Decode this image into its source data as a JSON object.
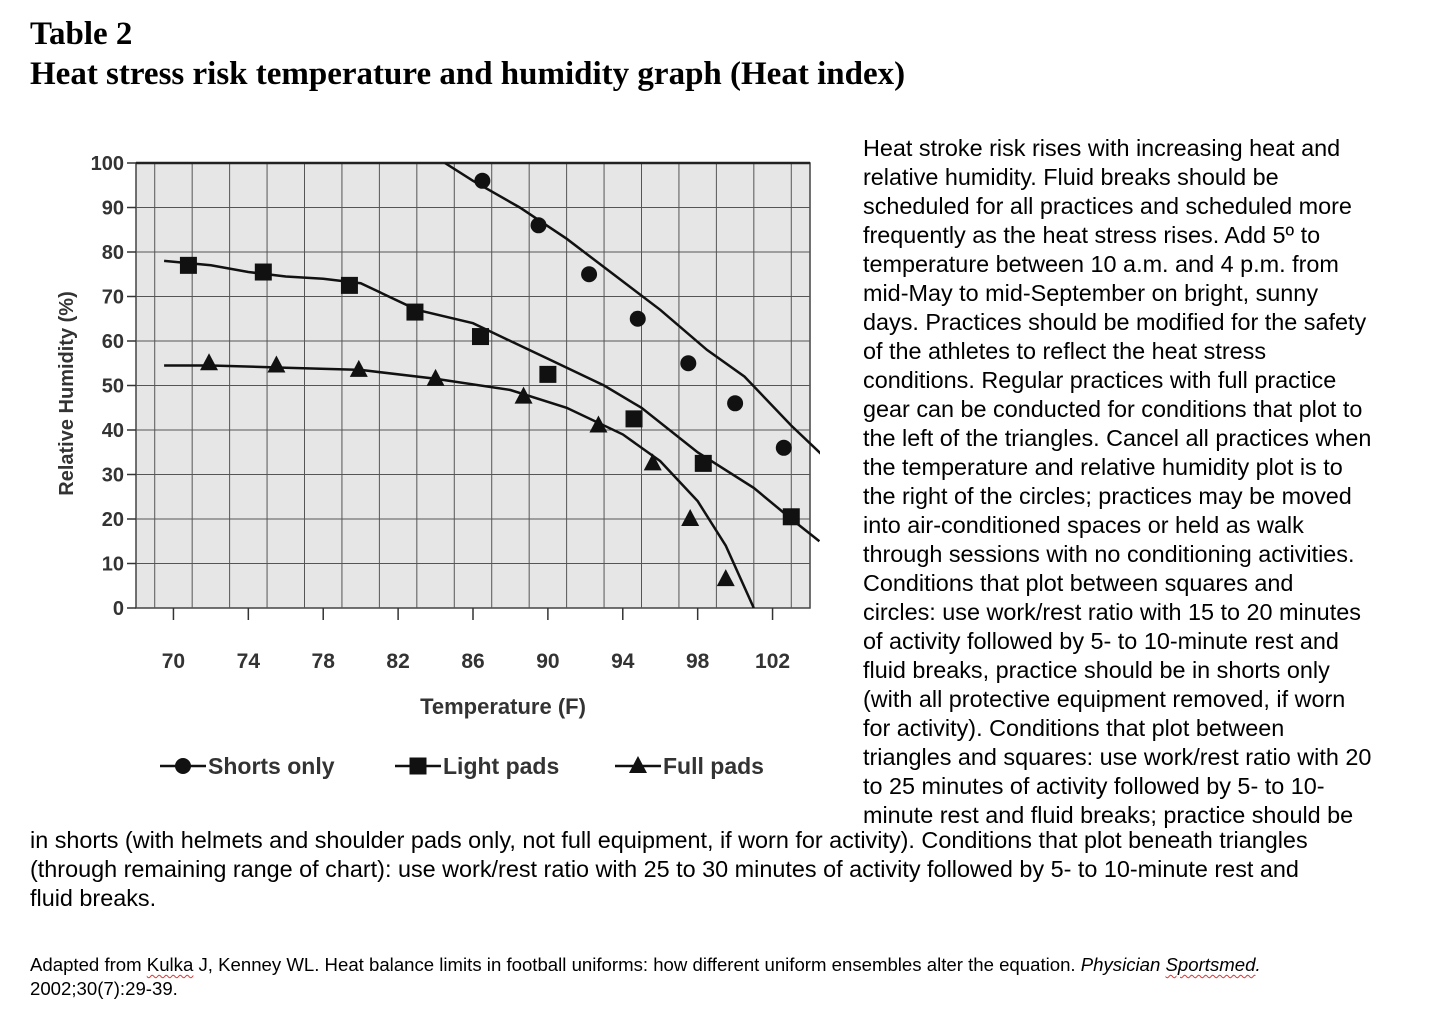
{
  "title": {
    "line1": "Table 2",
    "line2": "Heat stress risk temperature and humidity graph (Heat index)"
  },
  "chart_data": {
    "type": "line",
    "title": "",
    "xlabel": "Temperature (F)",
    "ylabel": "Relative Humidity (%)",
    "xlim": [
      68,
      104
    ],
    "ylim": [
      0,
      100
    ],
    "x_ticks": [
      70,
      74,
      78,
      82,
      86,
      90,
      94,
      98,
      102
    ],
    "y_ticks": [
      0,
      10,
      20,
      30,
      40,
      50,
      60,
      70,
      80,
      90,
      100
    ],
    "grid": true,
    "legend_position": "bottom",
    "series": [
      {
        "name": "Shorts only",
        "marker": "circle",
        "curve": [
          [
            84.5,
            100
          ],
          [
            86,
            96
          ],
          [
            88.5,
            90
          ],
          [
            91,
            83
          ],
          [
            93.5,
            75
          ],
          [
            96,
            67
          ],
          [
            98.5,
            58
          ],
          [
            100.5,
            52
          ],
          [
            103,
            41
          ],
          [
            105,
            33
          ]
        ],
        "points": [
          [
            86.5,
            96
          ],
          [
            89.5,
            86
          ],
          [
            92.2,
            75
          ],
          [
            94.8,
            65
          ],
          [
            97.5,
            55
          ],
          [
            100,
            46
          ],
          [
            102.6,
            36
          ]
        ]
      },
      {
        "name": "Light pads",
        "marker": "square",
        "curve": [
          [
            69.5,
            78
          ],
          [
            72,
            77
          ],
          [
            74,
            75.5
          ],
          [
            76,
            74.5
          ],
          [
            78,
            74
          ],
          [
            80,
            73
          ],
          [
            83,
            67
          ],
          [
            86,
            64
          ],
          [
            88,
            60
          ],
          [
            90,
            56
          ],
          [
            93,
            50
          ],
          [
            95,
            45
          ],
          [
            98,
            35
          ],
          [
            101,
            27
          ],
          [
            103,
            20
          ],
          [
            104.5,
            15
          ]
        ],
        "points": [
          [
            70.8,
            77
          ],
          [
            74.8,
            75.5
          ],
          [
            79.4,
            72.5
          ],
          [
            82.9,
            66.5
          ],
          [
            86.4,
            61
          ],
          [
            90,
            52.5
          ],
          [
            94.6,
            42.5
          ],
          [
            98.3,
            32.5
          ],
          [
            103,
            20.5
          ]
        ]
      },
      {
        "name": "Full pads",
        "marker": "triangle",
        "curve": [
          [
            69.5,
            54.5
          ],
          [
            72,
            54.5
          ],
          [
            76,
            54
          ],
          [
            80,
            53.5
          ],
          [
            84,
            51.5
          ],
          [
            88,
            49
          ],
          [
            91,
            45
          ],
          [
            94,
            39
          ],
          [
            96,
            33
          ],
          [
            98,
            24
          ],
          [
            99.5,
            14
          ],
          [
            101,
            0
          ]
        ],
        "points": [
          [
            71.9,
            55
          ],
          [
            75.5,
            54.5
          ],
          [
            79.9,
            53.5
          ],
          [
            84,
            51.5
          ],
          [
            88.7,
            47.5
          ],
          [
            92.7,
            41
          ],
          [
            95.6,
            32.5
          ],
          [
            97.6,
            20
          ],
          [
            99.5,
            6.5
          ]
        ]
      }
    ]
  },
  "side_text_lines": [
    " Heat stroke risk rises with increasing heat and",
    "relative humidity. Fluid breaks should be",
    "scheduled for all practices and scheduled more",
    "frequently as the heat stress rises. Add 5º to",
    "temperature between 10 a.m. and 4 p.m. from",
    "mid-May to mid-September on bright, sunny",
    "days. Practices should be modified for the safety",
    "of the athletes to reflect the heat stress",
    "conditions. Regular practices with full practice",
    "gear can be conducted for conditions that plot to",
    "the left of the triangles. Cancel all practices when",
    "the temperature and relative humidity plot is to",
    "the right of the circles; practices may be moved",
    "into air-conditioned spaces or held as walk",
    "through sessions with no conditioning activities.",
    "Conditions that plot between squares and",
    "circles: use work/rest ratio with 15 to 20 minutes",
    "of activity followed by 5- to 10-minute rest and",
    "fluid breaks, practice should be in shorts only",
    "(with all protective equipment removed, if worn",
    "for activity). Conditions that plot between",
    "triangles and squares: use work/rest ratio with 20",
    "to 25 minutes of activity followed by 5- to 10-",
    "minute rest and fluid breaks; practice should be"
  ],
  "full_text_lines": [
    "in shorts (with helmets and shoulder pads only, not full equipment, if worn for activity). Conditions that plot beneath triangles",
    "(through remaining range of chart): use work/rest ratio with 25 to 30 minutes of activity followed by 5- to 10-minute rest and",
    "fluid breaks."
  ],
  "citation": {
    "prefix": "Adapted from ",
    "author_surname": "Kulka",
    "middle": " J, Kenney WL. Heat balance limits in football uniforms: how different uniform ensembles alter the equation. ",
    "journal_a": "Physician ",
    "journal_b": "Sportsmed",
    "journal_end": ".",
    "line2": "2002;30(7):29-39."
  }
}
